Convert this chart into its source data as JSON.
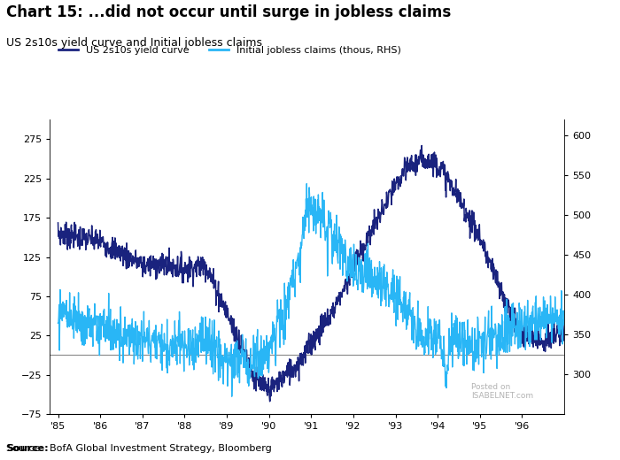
{
  "title": "Chart 15: ...did not occur until surge in jobless claims",
  "subtitle": "US 2s10s yield curve and Initial jobless claims",
  "source": "BofA Global Investment Strategy, Bloomberg",
  "watermark": "ISABELNET.com",
  "left_label": "US 2s10s yield curve",
  "right_label": "Initial jobless claims (thous, RHS)",
  "left_color": "#1a237e",
  "right_color": "#29b6f6",
  "ylim_left": [
    -75,
    300
  ],
  "ylim_right": [
    250,
    620
  ],
  "yticks_left": [
    -75,
    -25,
    25,
    75,
    125,
    175,
    225,
    275
  ],
  "yticks_right": [
    300,
    350,
    400,
    450,
    500,
    550,
    600
  ],
  "xtick_labels": [
    "'85",
    "'86",
    "'87",
    "'88",
    "'89",
    "'90",
    "'91",
    "'92",
    "'93",
    "'94",
    "'95",
    "'96"
  ],
  "background_color": "#ffffff",
  "zero_line_color": "#888888",
  "title_fontsize": 12,
  "subtitle_fontsize": 9,
  "legend_fontsize": 8,
  "axis_fontsize": 8
}
